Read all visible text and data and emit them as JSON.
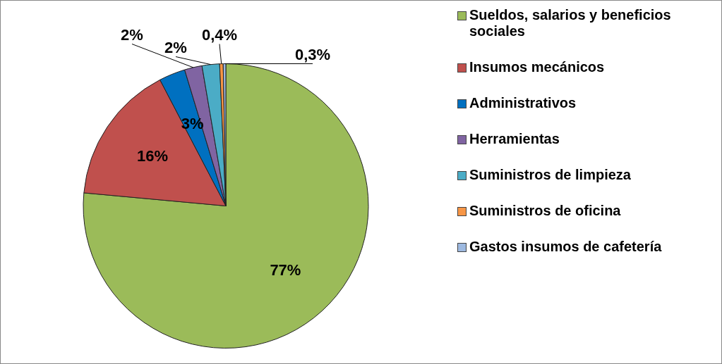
{
  "chart_data": {
    "type": "pie",
    "categories": [
      "Sueldos, salarios y beneficios sociales",
      "Insumos mecánicos",
      "Administrativos",
      "Herramientas",
      "Suministros de limpieza",
      "Suministros de oficina",
      "Gastos insumos de cafetería"
    ],
    "values": [
      77,
      16,
      3,
      2,
      2,
      0.4,
      0.3
    ],
    "value_labels": [
      "77%",
      "16%",
      "3%",
      "2%",
      "2%",
      "0,4%",
      "0,3%"
    ],
    "colors": [
      "#9bbb59",
      "#c0504d",
      "#0070c0",
      "#8064a2",
      "#4bacc6",
      "#f79646",
      "#9db9e0"
    ],
    "legend": "right"
  }
}
